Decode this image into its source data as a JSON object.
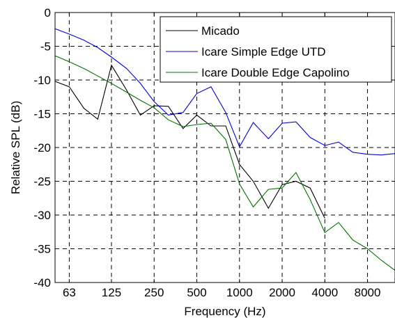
{
  "chart_data": {
    "type": "line",
    "title": "",
    "xlabel": "Frequency (Hz)",
    "ylabel": "Relative SPL (dB)",
    "x_scale": "log",
    "xlim": [
      50,
      12500
    ],
    "ylim": [
      -40,
      0
    ],
    "x_ticks": [
      63,
      125,
      250,
      500,
      1000,
      2000,
      4000,
      8000
    ],
    "x_tick_labels": [
      "63",
      "125",
      "250",
      "500",
      "1000",
      "2000",
      "4000",
      "8000"
    ],
    "y_ticks": [
      0,
      -5,
      -10,
      -15,
      -20,
      -25,
      -30,
      -35,
      -40
    ],
    "y_tick_labels": [
      "0",
      "-5",
      "-10",
      "-15",
      "-20",
      "-25",
      "-30",
      "-35",
      "-40"
    ],
    "grid": true,
    "legend_position": "top-right",
    "series": [
      {
        "name": "Micado",
        "color": "#000000",
        "x": [
          50,
          63,
          80,
          100,
          125,
          160,
          200,
          250,
          315,
          400,
          500,
          630,
          800,
          1000,
          1250,
          1600,
          2000,
          2500,
          3150,
          4000
        ],
        "y": [
          -10.2,
          -11.0,
          -14.2,
          -15.8,
          -7.8,
          -11.5,
          -15.2,
          -13.8,
          -13.9,
          -17.2,
          -15.2,
          -16.8,
          -16.8,
          -22.5,
          -25.0,
          -29.0,
          -25.5,
          -25.0,
          -26.0,
          -30.5
        ]
      },
      {
        "name": "Icare Simple Edge UTD",
        "color": "#0000dd",
        "x": [
          50,
          63,
          80,
          100,
          125,
          160,
          200,
          250,
          315,
          400,
          500,
          630,
          800,
          1000,
          1250,
          1600,
          2000,
          2500,
          3150,
          4000,
          5000,
          6300,
          8000,
          10000,
          12500
        ],
        "y": [
          -2.4,
          -3.2,
          -4.1,
          -5.2,
          -6.6,
          -8.3,
          -10.5,
          -13.2,
          -15.2,
          -14.8,
          -12.0,
          -11.0,
          -14.8,
          -19.9,
          -16.3,
          -18.7,
          -16.4,
          -16.2,
          -18.5,
          -19.7,
          -19.2,
          -20.7,
          -21.0,
          -21.1,
          -20.9
        ]
      },
      {
        "name": "Icare Double Edge Capolino",
        "color": "#007000",
        "x": [
          50,
          63,
          80,
          100,
          125,
          160,
          200,
          250,
          315,
          400,
          500,
          630,
          800,
          1000,
          1250,
          1600,
          2000,
          2500,
          3150,
          4000,
          5000,
          6300,
          8000,
          10000,
          12500
        ],
        "y": [
          -6.4,
          -7.3,
          -8.3,
          -9.4,
          -10.5,
          -11.8,
          -13.0,
          -14.1,
          -15.9,
          -16.9,
          -16.6,
          -16.4,
          -18.8,
          -25.4,
          -28.8,
          -26.2,
          -26.0,
          -23.7,
          -27.7,
          -32.6,
          -31.1,
          -33.7,
          -35.0,
          -36.7,
          -38.2
        ]
      }
    ]
  }
}
